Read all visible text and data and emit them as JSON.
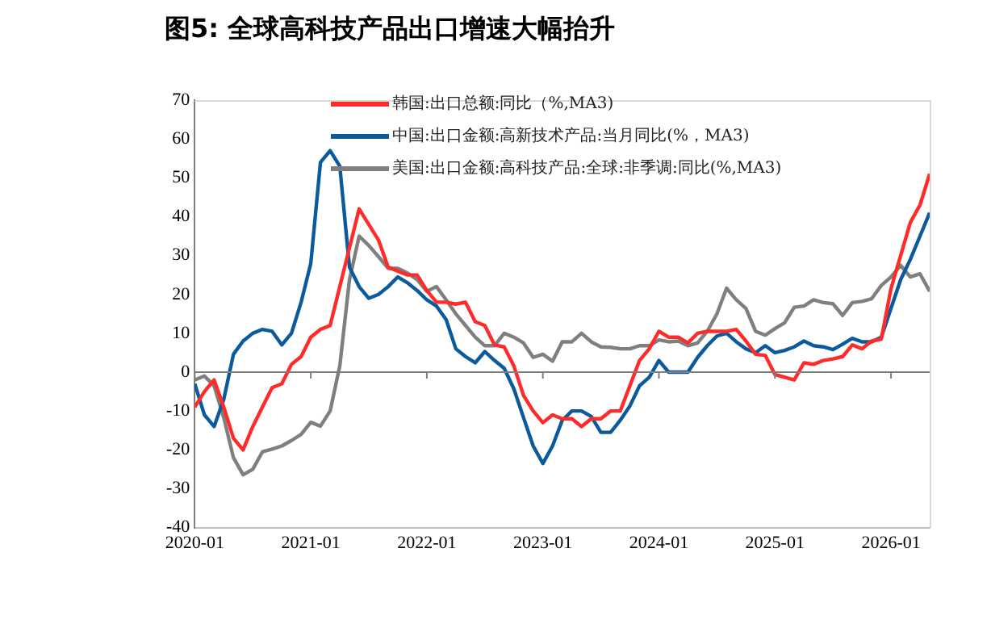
{
  "chart_data": {
    "type": "line",
    "title": "图5:  全球高科技产品出口增速大幅抬升",
    "x": [
      "2020-01",
      "2020-02",
      "2020-03",
      "2020-04",
      "2020-05",
      "2020-06",
      "2020-07",
      "2020-08",
      "2020-09",
      "2020-10",
      "2020-11",
      "2020-12",
      "2021-01",
      "2021-02",
      "2021-03",
      "2021-04",
      "2021-05",
      "2021-06",
      "2021-07",
      "2021-08",
      "2021-09",
      "2021-10",
      "2021-11",
      "2021-12",
      "2022-01",
      "2022-02",
      "2022-03",
      "2022-04",
      "2022-05",
      "2022-06",
      "2022-07",
      "2022-08",
      "2022-09",
      "2022-10",
      "2022-11",
      "2022-12",
      "2023-01",
      "2023-02",
      "2023-03",
      "2023-04",
      "2023-05",
      "2023-06",
      "2023-07",
      "2023-08",
      "2023-09",
      "2023-10",
      "2023-11",
      "2023-12",
      "2024-01",
      "2024-02",
      "2024-03",
      "2024-04",
      "2024-05",
      "2024-06",
      "2024-07",
      "2024-08",
      "2024-09",
      "2024-10",
      "2024-11",
      "2024-12",
      "2025-01",
      "2025-02",
      "2025-03",
      "2025-04",
      "2025-05",
      "2025-06",
      "2025-07",
      "2025-08",
      "2025-09",
      "2025-10",
      "2025-11",
      "2025-12",
      "2026-01",
      "2026-02",
      "2026-03",
      "2026-04",
      "2026-05"
    ],
    "series": [
      {
        "name": "韩国:出口总额:同比（%,MA3)",
        "color": "#ff2a2a",
        "values": [
          -9,
          -5,
          -2,
          -9,
          -17,
          -20,
          -14,
          -9,
          -4,
          -3,
          2,
          4,
          9,
          11,
          12,
          22,
          32,
          42,
          38,
          34,
          27,
          26,
          25,
          25,
          21,
          18,
          18,
          17.5,
          18,
          13,
          12,
          7,
          6.5,
          1.6,
          -6,
          -10,
          -13,
          -11,
          -12,
          -12,
          -14,
          -12,
          -12,
          -10,
          -10,
          -3.5,
          3,
          6,
          10.5,
          9,
          9,
          7.5,
          10,
          10.5,
          10.5,
          10.5,
          11,
          8,
          4.6,
          4.3,
          -0.6,
          -1.3,
          -2,
          2.4,
          2,
          3,
          3.4,
          4,
          7,
          6,
          8,
          8.5,
          21.5,
          30,
          38.5,
          43,
          51
        ]
      },
      {
        "name": "中国:出口金额:高新技术产品:当月同比(%，MA3)",
        "color": "#0a5a9c",
        "values": [
          -3,
          -11,
          -14,
          -7,
          4.6,
          8,
          10,
          11,
          10.5,
          7,
          10,
          18,
          28,
          54,
          57,
          53,
          27,
          22,
          19,
          20,
          22,
          24.5,
          23,
          21,
          18.6,
          17,
          13.5,
          6,
          4,
          2.4,
          5.3,
          3,
          1,
          -4.3,
          -11.7,
          -19,
          -23.5,
          -19,
          -12.4,
          -10,
          -10,
          -11.4,
          -15.5,
          -15.5,
          -12.4,
          -8.7,
          -3.5,
          -1.3,
          3,
          0,
          0,
          0,
          3.8,
          6.8,
          9.3,
          10,
          7.8,
          6,
          5,
          6.8,
          5,
          5.6,
          6.5,
          8,
          6.8,
          6.5,
          5.8,
          7.2,
          8.7,
          7.8,
          7.8,
          9,
          16.4,
          23.8,
          29,
          35,
          41
        ]
      },
      {
        "name": "美国:出口金额:高科技产品:全球:非季调:同比(%,MA3)",
        "color": "#7f7f7f",
        "values": [
          -2,
          -1,
          -3.5,
          -11.7,
          -22,
          -26.4,
          -25,
          -20.5,
          -19.8,
          -19,
          -17.6,
          -16,
          -12.9,
          -13.9,
          -10,
          1.6,
          23.8,
          35,
          32.6,
          29.7,
          26.7,
          26.7,
          25.5,
          23.8,
          20.8,
          22,
          18.6,
          15,
          12,
          9,
          6.8,
          6.8,
          10,
          9,
          7.5,
          3.8,
          4.6,
          2.8,
          7.8,
          7.8,
          10,
          7.8,
          6.5,
          6.4,
          6,
          6,
          6.8,
          6.8,
          8.3,
          7.8,
          8,
          6.8,
          7.5,
          10.5,
          15,
          21.6,
          18.6,
          16.4,
          10.5,
          9.5,
          11.2,
          12.7,
          16.7,
          17,
          18.6,
          17.9,
          17.6,
          14.6,
          17.9,
          18.2,
          18.9,
          22.3,
          24.5,
          27.5,
          24.5,
          25.3,
          20.8
        ]
      }
    ],
    "xlim": [
      "2020-01",
      "2026-05"
    ],
    "xticks": [
      "2020-01",
      "2021-01",
      "2022-01",
      "2023-01",
      "2024-01",
      "2025-01",
      "2026-01"
    ],
    "ylim": [
      -40,
      70
    ],
    "yticks": [
      -40,
      -30,
      -20,
      -10,
      0,
      10,
      20,
      30,
      40,
      50,
      60,
      70
    ],
    "ref_lines": [
      {
        "axis": "y",
        "value": 0,
        "color": "#7f7f7f"
      }
    ],
    "grid": false,
    "legend": "top left",
    "marker": "none",
    "line_style": "solid"
  }
}
